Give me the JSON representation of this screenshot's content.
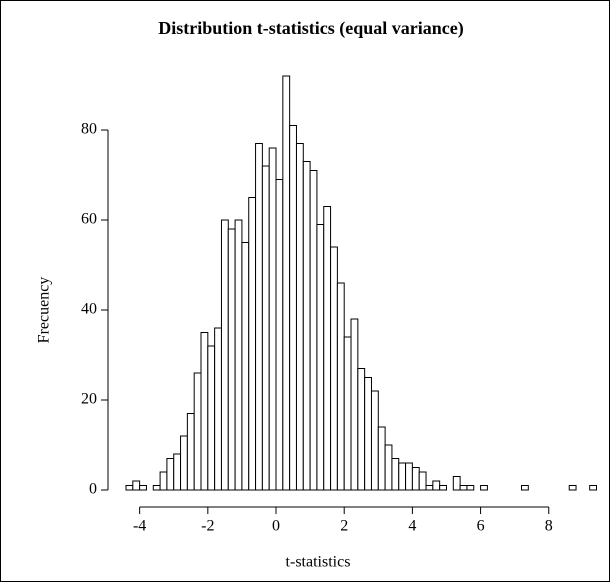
{
  "chart_data": {
    "type": "histogram",
    "title": "Distribution t-statistics (equal variance)",
    "x_label": "t-statistics",
    "y_label": "Frecuency",
    "bins": [
      -4.4,
      -4.2,
      -4.0,
      -3.8,
      -3.6,
      -3.4,
      -3.2,
      -3.0,
      -2.8,
      -2.6,
      -2.4,
      -2.2,
      -2.0,
      -1.8,
      -1.6,
      -1.4,
      -1.2,
      -1.0,
      -0.8,
      -0.6,
      -0.4,
      -0.2,
      0.0,
      0.2,
      0.4,
      0.6,
      0.8,
      1.0,
      1.2,
      1.4,
      1.6,
      1.8,
      2.0,
      2.2,
      2.4,
      2.6,
      2.8,
      3.0,
      3.2,
      3.4,
      3.6,
      3.8,
      4.0,
      4.2,
      4.4,
      4.6,
      4.8,
      5.0,
      5.2,
      5.4,
      5.6,
      5.8,
      6.0,
      6.2,
      6.4,
      6.6,
      6.8,
      7.0,
      7.2,
      7.4,
      7.6,
      7.8,
      8.0,
      8.2,
      8.4,
      8.6,
      8.8,
      9.0,
      9.2,
      9.4
    ],
    "values": [
      1,
      2,
      1,
      0,
      1,
      4,
      7,
      8,
      12,
      17,
      26,
      35,
      32,
      36,
      60,
      58,
      60,
      55,
      65,
      77,
      72,
      76,
      69,
      92,
      81,
      77,
      73,
      71,
      59,
      63,
      54,
      46,
      34,
      38,
      27,
      25,
      22,
      14,
      10,
      7,
      6,
      6,
      5,
      4,
      1,
      2,
      1,
      0,
      3,
      1,
      1,
      0,
      1,
      0,
      0,
      0,
      0,
      0,
      1,
      0,
      0,
      0,
      0,
      0,
      0,
      1,
      0,
      0,
      1
    ],
    "color": "#ffffff",
    "xlim": [
      -4.4,
      9.4
    ],
    "ylim": [
      0,
      92
    ],
    "xticks": [
      -4,
      -2,
      0,
      2,
      4,
      6,
      8
    ],
    "yticks": [
      0,
      20,
      40,
      60,
      80
    ],
    "grid": false
  }
}
